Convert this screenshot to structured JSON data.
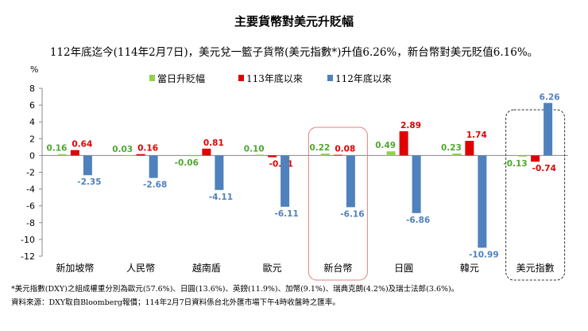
{
  "chart_data": {
    "type": "bar",
    "title": "主要貨幣對美元升貶幅",
    "subtitle": "112年底迄今(114年2月7日)，美元兌一籃子貨幣(美元指數*)升值6.26%，新台幣對美元貶值6.16%。",
    "ylabel": "%",
    "ylim": [
      -12,
      8
    ],
    "yticks": [
      8,
      6,
      4,
      2,
      0,
      -2,
      -4,
      -6,
      -8,
      -10,
      -12
    ],
    "grid": false,
    "legend_position": "top",
    "categories": [
      "新加坡幣",
      "人民幣",
      "越南盾",
      "歐元",
      "新台幣",
      "日圓",
      "韓元",
      "美元指數"
    ],
    "series": [
      {
        "name": "當日升貶幅",
        "color": "#92d050",
        "label_color": "#4ea72e",
        "values": [
          0.16,
          0.03,
          -0.06,
          0.1,
          0.22,
          0.49,
          0.23,
          -0.13
        ]
      },
      {
        "name": "113年底以來",
        "color": "#e00000",
        "label_color": "#e00000",
        "values": [
          0.64,
          0.16,
          0.81,
          -0.21,
          0.08,
          2.89,
          1.74,
          -0.74
        ]
      },
      {
        "name": "112年底以來",
        "color": "#4f81bd",
        "label_color": "#4f81bd",
        "values": [
          -2.35,
          -2.68,
          -4.11,
          -6.11,
          -6.16,
          -6.86,
          -10.99,
          6.26
        ]
      }
    ],
    "highlighted_categories": [
      "新台幣",
      "美元指數"
    ],
    "footnotes": [
      "*美元指數(DXY)之組成權重分別為歐元(57.6%)、日圓(13.6%)、英鎊(11.9%)、加幣(9.1%)、瑞典克朗(4.2%)及瑞士法郎(3.6%)。",
      "資料來源：DXY取自Bloomberg報價；114年2月7日資料係台北外匯市場下午4時收盤時之匯率。"
    ]
  }
}
